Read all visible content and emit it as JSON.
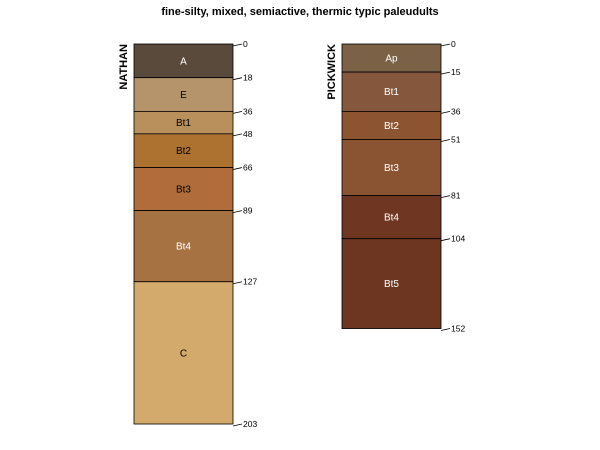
{
  "title": "fine-silty, mixed, semiactive, thermic typic paleudults",
  "chart_data": {
    "type": "soil_profile",
    "title": "fine-silty, mixed, semiactive, thermic typic paleudults",
    "profiles": [
      {
        "name": "NATHAN",
        "horizons": [
          {
            "name": "A",
            "top": 0,
            "bottom": 18,
            "color": "#5a4a3c",
            "text": "#ffffff"
          },
          {
            "name": "E",
            "top": 18,
            "bottom": 36,
            "color": "#b5946c",
            "text": "#000000"
          },
          {
            "name": "Bt1",
            "top": 36,
            "bottom": 48,
            "color": "#b98f5b",
            "text": "#000000"
          },
          {
            "name": "Bt2",
            "top": 48,
            "bottom": 66,
            "color": "#ad7230",
            "text": "#000000"
          },
          {
            "name": "Bt3",
            "top": 66,
            "bottom": 89,
            "color": "#b06d3b",
            "text": "#000000"
          },
          {
            "name": "Bt4",
            "top": 89,
            "bottom": 127,
            "color": "#a67242",
            "text": "#ffffff"
          },
          {
            "name": "C",
            "top": 127,
            "bottom": 203,
            "color": "#d4a96c",
            "text": "#000000"
          }
        ],
        "depths": [
          "0",
          "18",
          "36",
          "48",
          "66",
          "89",
          "127",
          "203"
        ]
      },
      {
        "name": "PICKWICK",
        "horizons": [
          {
            "name": "Ap",
            "top": 0,
            "bottom": 15,
            "color": "#7b6246",
            "text": "#ffffff"
          },
          {
            "name": "Bt1",
            "top": 15,
            "bottom": 36,
            "color": "#85573d",
            "text": "#ffffff"
          },
          {
            "name": "Bt2",
            "top": 36,
            "bottom": 51,
            "color": "#8c5431",
            "text": "#ffffff"
          },
          {
            "name": "Bt3",
            "top": 51,
            "bottom": 81,
            "color": "#8a5332",
            "text": "#ffffff"
          },
          {
            "name": "Bt4",
            "top": 81,
            "bottom": 104,
            "color": "#6f3722",
            "text": "#ffffff"
          },
          {
            "name": "Bt5",
            "top": 104,
            "bottom": 152,
            "color": "#6c3620",
            "text": "#ffffff"
          }
        ],
        "depths": [
          "0",
          "15",
          "36",
          "51",
          "81",
          "104",
          "152"
        ]
      }
    ]
  }
}
